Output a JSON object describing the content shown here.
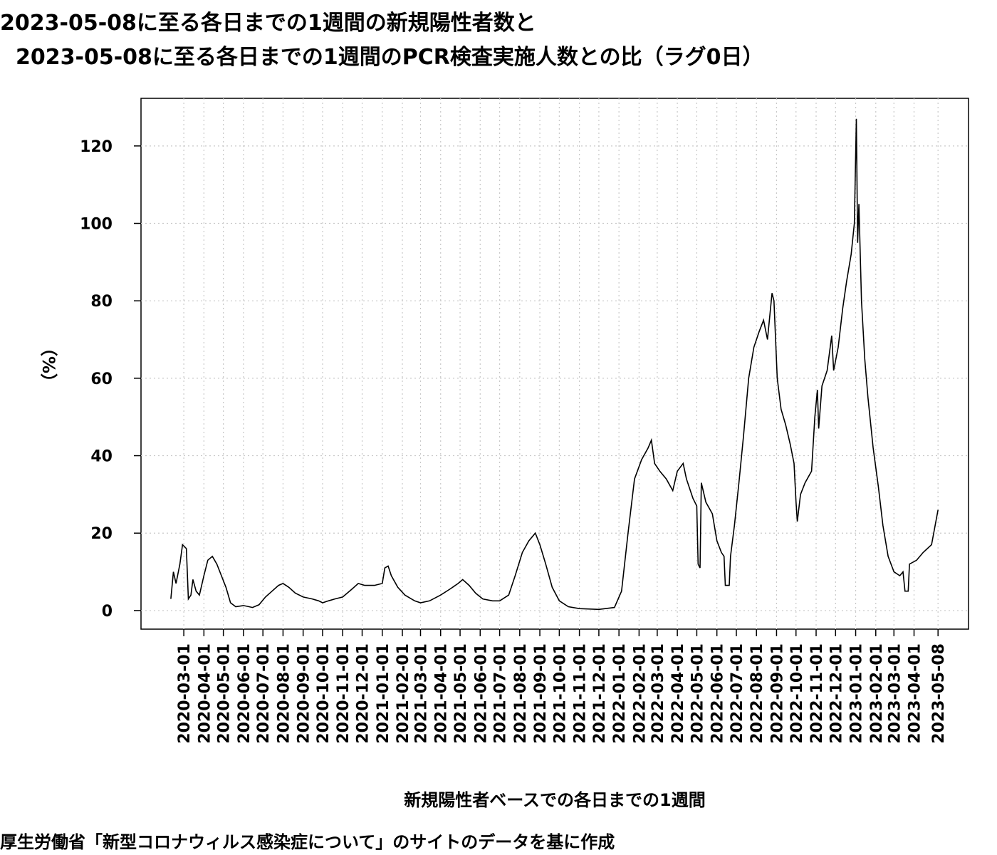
{
  "chart_data": {
    "type": "line",
    "title": [
      "2023-05-08に至る各日までの1週間の新規陽性者数と",
      "2023-05-08に至る各日までの1週間のPCR検査実施人数との比（ラグ0日）"
    ],
    "x_label": "新規陽性者ベースでの各日までの1週間",
    "y_label": "（%）",
    "caption": "厚生労働省「新型コロナウィルス感染症について」のサイトのデータを基に作成",
    "xlim": [
      "2019-12-26",
      "2023-06-24"
    ],
    "xticks": [
      "2020-03-01",
      "2020-04-01",
      "2020-05-01",
      "2020-06-01",
      "2020-07-01",
      "2020-08-01",
      "2020-09-01",
      "2020-10-01",
      "2020-11-01",
      "2020-12-01",
      "2021-01-01",
      "2021-02-01",
      "2021-03-01",
      "2021-04-01",
      "2021-05-01",
      "2021-06-01",
      "2021-07-01",
      "2021-08-01",
      "2021-09-01",
      "2021-10-01",
      "2021-11-01",
      "2021-12-01",
      "2022-01-01",
      "2022-02-01",
      "2022-03-01",
      "2022-04-01",
      "2022-05-01",
      "2022-06-01",
      "2022-07-01",
      "2022-08-01",
      "2022-09-01",
      "2022-10-01",
      "2022-11-01",
      "2022-12-01",
      "2023-01-01",
      "2023-02-01",
      "2023-03-01",
      "2023-04-01",
      "2023-05-08"
    ],
    "ylim": [
      -4.8,
      132.3
    ],
    "yticks": [
      0,
      20,
      40,
      60,
      80,
      100,
      120
    ],
    "grid": true,
    "color": "#000000",
    "x": [
      "2020-02-10",
      "2020-02-14",
      "2020-02-18",
      "2020-02-24",
      "2020-02-28",
      "2020-03-05",
      "2020-03-08",
      "2020-03-12",
      "2020-03-15",
      "2020-03-20",
      "2020-03-25",
      "2020-04-01",
      "2020-04-07",
      "2020-04-14",
      "2020-04-21",
      "2020-04-28",
      "2020-05-05",
      "2020-05-12",
      "2020-05-20",
      "2020-06-01",
      "2020-06-15",
      "2020-06-25",
      "2020-07-05",
      "2020-07-15",
      "2020-07-25",
      "2020-08-01",
      "2020-08-10",
      "2020-08-20",
      "2020-09-01",
      "2020-09-15",
      "2020-09-25",
      "2020-10-01",
      "2020-10-10",
      "2020-10-20",
      "2020-11-01",
      "2020-11-15",
      "2020-11-25",
      "2020-12-05",
      "2020-12-20",
      "2021-01-01",
      "2021-01-05",
      "2021-01-10",
      "2021-01-15",
      "2021-01-25",
      "2021-02-05",
      "2021-02-20",
      "2021-03-01",
      "2021-03-15",
      "2021-04-01",
      "2021-04-15",
      "2021-04-28",
      "2021-05-05",
      "2021-05-15",
      "2021-05-25",
      "2021-06-05",
      "2021-06-20",
      "2021-07-01",
      "2021-07-15",
      "2021-07-25",
      "2021-08-05",
      "2021-08-15",
      "2021-08-25",
      "2021-09-01",
      "2021-09-10",
      "2021-09-20",
      "2021-10-01",
      "2021-10-15",
      "2021-11-01",
      "2021-12-01",
      "2021-12-25",
      "2022-01-05",
      "2022-01-15",
      "2022-01-25",
      "2022-02-05",
      "2022-02-15",
      "2022-02-20",
      "2022-02-25",
      "2022-03-05",
      "2022-03-15",
      "2022-03-25",
      "2022-04-01",
      "2022-04-10",
      "2022-04-15",
      "2022-04-25",
      "2022-05-01",
      "2022-05-03",
      "2022-05-06",
      "2022-05-08",
      "2022-05-15",
      "2022-05-25",
      "2022-06-01",
      "2022-06-08",
      "2022-06-12",
      "2022-06-14",
      "2022-06-20",
      "2022-06-22",
      "2022-06-28",
      "2022-07-05",
      "2022-07-12",
      "2022-07-20",
      "2022-07-28",
      "2022-08-05",
      "2022-08-12",
      "2022-08-18",
      "2022-08-25",
      "2022-08-28",
      "2022-09-02",
      "2022-09-08",
      "2022-09-15",
      "2022-09-22",
      "2022-09-28",
      "2022-10-01",
      "2022-10-03",
      "2022-10-08",
      "2022-10-15",
      "2022-10-25",
      "2022-10-30",
      "2022-11-03",
      "2022-11-05",
      "2022-11-10",
      "2022-11-18",
      "2022-11-25",
      "2022-11-28",
      "2022-12-05",
      "2022-12-12",
      "2022-12-18",
      "2022-12-25",
      "2022-12-30",
      "2023-01-02",
      "2023-01-04",
      "2023-01-06",
      "2023-01-10",
      "2023-01-15",
      "2023-01-20",
      "2023-01-28",
      "2023-02-05",
      "2023-02-12",
      "2023-02-20",
      "2023-03-01",
      "2023-03-10",
      "2023-03-15",
      "2023-03-18",
      "2023-03-23",
      "2023-03-25",
      "2023-04-05",
      "2023-04-15",
      "2023-04-28",
      "2023-05-08"
    ],
    "values": [
      3,
      10,
      7,
      12,
      17,
      16,
      3,
      4,
      8,
      5,
      4,
      9,
      13,
      14,
      12,
      9,
      6,
      2,
      1,
      1.3,
      0.8,
      1.5,
      3.5,
      5,
      6.5,
      7,
      6,
      4.5,
      3.5,
      3,
      2.5,
      2,
      2.5,
      3,
      3.5,
      5.5,
      7,
      6.5,
      6.5,
      7,
      11,
      11.5,
      9,
      6,
      4,
      2.5,
      2,
      2.5,
      4,
      5.5,
      7,
      8,
      6.5,
      4.5,
      3,
      2.5,
      2.5,
      4,
      9,
      15,
      18,
      20,
      17,
      12,
      6,
      2.5,
      1,
      0.5,
      0.3,
      0.8,
      5,
      20,
      34,
      39,
      42,
      44,
      38,
      36,
      34,
      31,
      36,
      38,
      34,
      29,
      27,
      12,
      11,
      33,
      28,
      25,
      18,
      15,
      14,
      6.5,
      6.5,
      14,
      22,
      33,
      45,
      60,
      68,
      72,
      75,
      70,
      82,
      80,
      60,
      52,
      48,
      43,
      38,
      28,
      23,
      30,
      33,
      36,
      50,
      57,
      47,
      58,
      62,
      71,
      62,
      68,
      78,
      85,
      92,
      100,
      127,
      95,
      105,
      80,
      65,
      55,
      42,
      32,
      22,
      14,
      10,
      9,
      10,
      5,
      5,
      12,
      13,
      15,
      17,
      26
    ]
  }
}
